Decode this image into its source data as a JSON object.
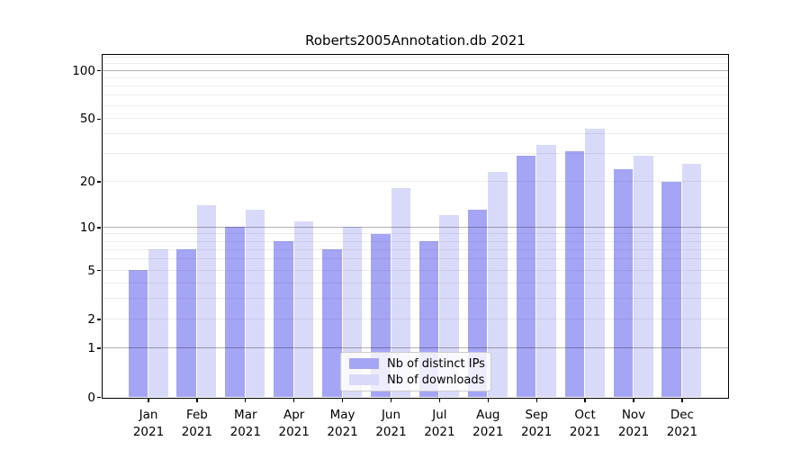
{
  "title": "Roberts2005Annotation.db 2021",
  "chart_data": {
    "type": "bar",
    "title": "Roberts2005Annotation.db 2021",
    "categories": [
      "Jan 2021",
      "Feb 2021",
      "Mar 2021",
      "Apr 2021",
      "May 2021",
      "Jun 2021",
      "Jul 2021",
      "Aug 2021",
      "Sep 2021",
      "Oct 2021",
      "Nov 2021",
      "Dec 2021"
    ],
    "x_tick_line1": [
      "Jan",
      "Feb",
      "Mar",
      "Apr",
      "May",
      "Jun",
      "Jul",
      "Aug",
      "Sep",
      "Oct",
      "Nov",
      "Dec"
    ],
    "x_tick_line2": "2021",
    "series": [
      {
        "name": "Nb of distinct IPs",
        "color": "#a5a5f6",
        "values": [
          5,
          7,
          10,
          8,
          7,
          9,
          8,
          13,
          29,
          31,
          24,
          20
        ]
      },
      {
        "name": "Nb of downloads",
        "color": "#d9d9f9",
        "values": [
          7,
          14,
          13,
          11,
          10,
          18,
          12,
          23,
          34,
          43,
          29,
          26
        ]
      }
    ],
    "yscale": "log1p",
    "ylim": [
      0,
      125
    ],
    "y_tick_values": [
      0,
      1,
      2,
      5,
      10,
      20,
      50,
      100
    ],
    "y_tick_labels": [
      "0",
      "1",
      "2",
      "5",
      "10",
      "20",
      "50",
      "100"
    ],
    "y_major_gridlines": [
      1,
      10,
      100
    ],
    "y_minor_gridlines": [
      2,
      3,
      4,
      5,
      6,
      7,
      8,
      9,
      20,
      30,
      40,
      50,
      60,
      70,
      80,
      90,
      110,
      120
    ],
    "grid": true,
    "legend_position": "lower center"
  }
}
